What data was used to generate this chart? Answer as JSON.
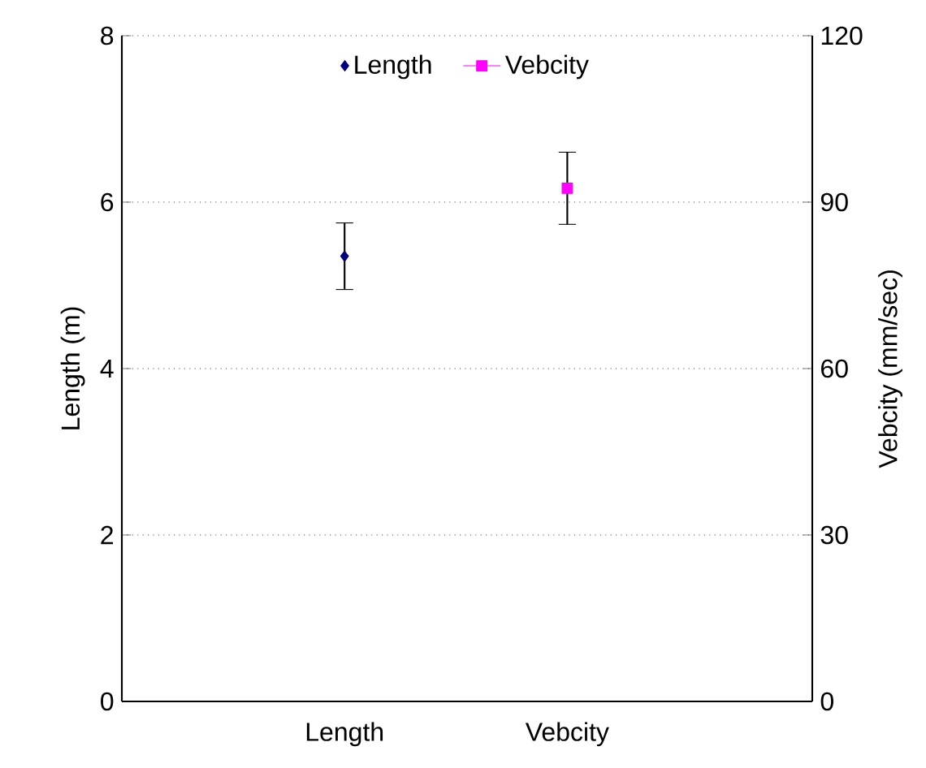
{
  "chart_data": {
    "type": "scatter",
    "categories": [
      "Length",
      "Vebcity"
    ],
    "ylabel": "Length (m)",
    "y2label": "Vebcity (mm/sec)",
    "ylim": [
      0,
      8
    ],
    "yticks": [
      0,
      2,
      4,
      6,
      8
    ],
    "y2lim": [
      0,
      120
    ],
    "y2ticks": [
      0,
      30,
      60,
      90,
      120
    ],
    "grid": "y",
    "legend": "top",
    "series": [
      {
        "name": "Length",
        "color": "#000080",
        "marker": "diamond",
        "x": [
          "Length"
        ],
        "values": [
          5.35
        ],
        "errors": [
          0.4
        ]
      },
      {
        "name": "Vebcity",
        "color": "#ff00ff",
        "marker": "square",
        "line_style": "solid",
        "axis": "y2",
        "x": [
          "Vebcity"
        ],
        "values": [
          92.5
        ],
        "errors": [
          6.5
        ]
      }
    ]
  }
}
